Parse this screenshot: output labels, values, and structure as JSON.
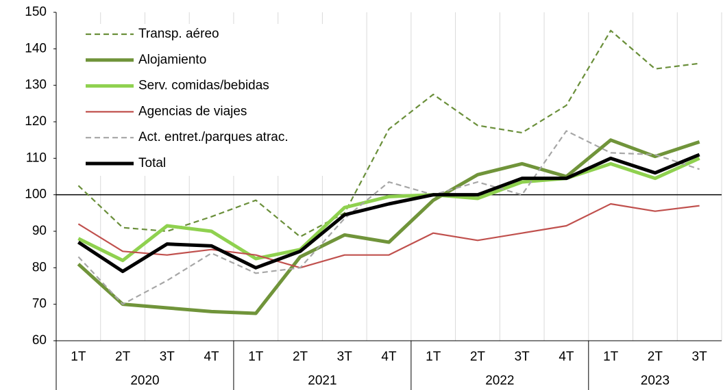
{
  "chart_data": {
    "type": "line",
    "categories": [
      "1T",
      "2T",
      "3T",
      "4T",
      "1T",
      "2T",
      "3T",
      "4T",
      "1T",
      "2T",
      "3T",
      "4T",
      "1T",
      "2T",
      "3T"
    ],
    "groups": [
      {
        "label": "2020",
        "count": 4
      },
      {
        "label": "2021",
        "count": 4
      },
      {
        "label": "2022",
        "count": 4
      },
      {
        "label": "2023",
        "count": 3
      }
    ],
    "series": [
      {
        "name": "Transp. aéreo",
        "color": "#6a8f3a",
        "dashed": true,
        "thick": false,
        "values": [
          102.5,
          91,
          90,
          94,
          98.5,
          88.5,
          95,
          118,
          127.5,
          119,
          117,
          124.5,
          145,
          134.5,
          136
        ]
      },
      {
        "name": "Alojamiento",
        "color": "#70943a",
        "dashed": false,
        "thick": true,
        "values": [
          81,
          70,
          69,
          68,
          67.5,
          83,
          89,
          87,
          98.5,
          105.5,
          108.5,
          105,
          115,
          110.5,
          114.5
        ]
      },
      {
        "name": "Serv. comidas/bebidas",
        "color": "#8fd14f",
        "dashed": false,
        "thick": true,
        "values": [
          88,
          82,
          91.5,
          90,
          82.5,
          85,
          96.5,
          99.5,
          100,
          99,
          103.5,
          104.5,
          108.5,
          104.5,
          110
        ]
      },
      {
        "name": "Agencias de viajes",
        "color": "#c0504d",
        "dashed": false,
        "thick": false,
        "values": [
          92,
          84.5,
          83.5,
          85,
          83.5,
          80,
          83.5,
          83.5,
          89.5,
          87.5,
          89.5,
          91.5,
          97.5,
          95.5,
          97
        ]
      },
      {
        "name": "Act. entret./parques atrac.",
        "color": "#a6a6a6",
        "dashed": true,
        "thick": false,
        "values": [
          83,
          70,
          76.5,
          84,
          78.5,
          80,
          93.5,
          103.5,
          100,
          103.5,
          100,
          117.5,
          111.5,
          111,
          107
        ]
      },
      {
        "name": "Total",
        "color": "#000000",
        "dashed": false,
        "thick": true,
        "values": [
          87,
          79,
          86.5,
          86,
          80,
          84.5,
          94.5,
          97.5,
          100,
          100,
          104.5,
          104.5,
          110,
          106,
          111
        ]
      }
    ],
    "ylim": [
      60,
      150
    ],
    "yticks": [
      60,
      70,
      80,
      90,
      100,
      110,
      120,
      130,
      140,
      150
    ],
    "reference_line": 100,
    "grid": "vertical",
    "legend": "upper left"
  }
}
